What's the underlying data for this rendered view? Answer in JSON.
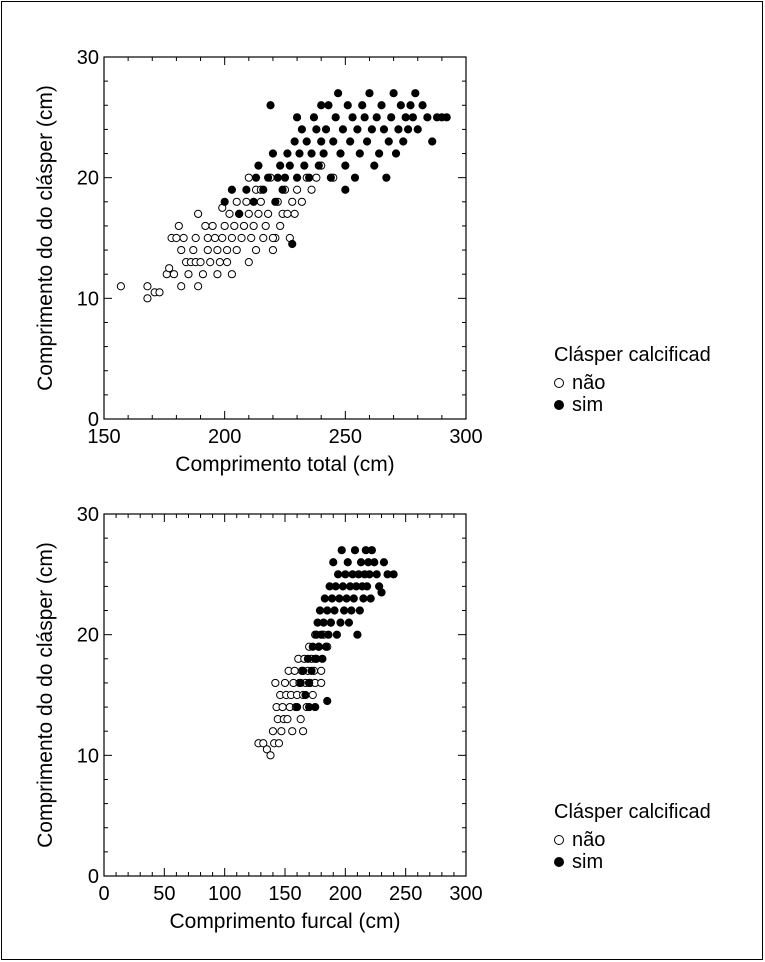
{
  "chart_data": [
    {
      "type": "scatter",
      "xlabel": "Comprimento total (cm)",
      "ylabel": "Comprimento do do clásper (cm)",
      "xlim": [
        150,
        300
      ],
      "ylim": [
        0,
        30
      ],
      "xticks": [
        150,
        200,
        250,
        300
      ],
      "yticks": [
        0,
        10,
        20,
        30
      ],
      "grid": false,
      "series": [
        {
          "name": "não",
          "marker": "open-circle",
          "points": [
            [
              157,
              11
            ],
            [
              168,
              10
            ],
            [
              168,
              11
            ],
            [
              171,
              10.5
            ],
            [
              173,
              10.5
            ],
            [
              176,
              12
            ],
            [
              177,
              12.5
            ],
            [
              178,
              15
            ],
            [
              179,
              12
            ],
            [
              180,
              15
            ],
            [
              181,
              16
            ],
            [
              182,
              14
            ],
            [
              182,
              11
            ],
            [
              183,
              15
            ],
            [
              184,
              13
            ],
            [
              185,
              12
            ],
            [
              186,
              13
            ],
            [
              187,
              14
            ],
            [
              188,
              15
            ],
            [
              188,
              13
            ],
            [
              189,
              11
            ],
            [
              189,
              17
            ],
            [
              190,
              13
            ],
            [
              191,
              12
            ],
            [
              192,
              16
            ],
            [
              193,
              14
            ],
            [
              193,
              15
            ],
            [
              194,
              13
            ],
            [
              195,
              16
            ],
            [
              196,
              15
            ],
            [
              197,
              14
            ],
            [
              197,
              12
            ],
            [
              198,
              13
            ],
            [
              199,
              15
            ],
            [
              199,
              17.5
            ],
            [
              200,
              16
            ],
            [
              201,
              13
            ],
            [
              201,
              14
            ],
            [
              202,
              17
            ],
            [
              203,
              12
            ],
            [
              203,
              15
            ],
            [
              204,
              16
            ],
            [
              205,
              14
            ],
            [
              206,
              17
            ],
            [
              207,
              15
            ],
            [
              208,
              16
            ],
            [
              209,
              18
            ],
            [
              210,
              17
            ],
            [
              210,
              13
            ],
            [
              211,
              15
            ],
            [
              212,
              16
            ],
            [
              213,
              19
            ],
            [
              213,
              14
            ],
            [
              214,
              17
            ],
            [
              215,
              18
            ],
            [
              216,
              15
            ],
            [
              217,
              16
            ],
            [
              218,
              17
            ],
            [
              219,
              20
            ],
            [
              220,
              14
            ],
            [
              221,
              15
            ],
            [
              222,
              18
            ],
            [
              223,
              16
            ],
            [
              224,
              17
            ],
            [
              225,
              19
            ],
            [
              226,
              17
            ],
            [
              227,
              15
            ],
            [
              228,
              18
            ],
            [
              229,
              17
            ],
            [
              230,
              19
            ],
            [
              232,
              18
            ],
            [
              234,
              20
            ],
            [
              236,
              19
            ],
            [
              238,
              20
            ],
            [
              240,
              21
            ],
            [
              245,
              20
            ],
            [
              210,
              20
            ],
            [
              215,
              19
            ],
            [
              205,
              18
            ],
            [
              220,
              15
            ]
          ]
        },
        {
          "name": "sim",
          "marker": "filled-circle",
          "points": [
            [
              200,
              18
            ],
            [
              203,
              19
            ],
            [
              206,
              17
            ],
            [
              209,
              19
            ],
            [
              212,
              18
            ],
            [
              213,
              20
            ],
            [
              214,
              21
            ],
            [
              216,
              19
            ],
            [
              218,
              20
            ],
            [
              219,
              26
            ],
            [
              220,
              22
            ],
            [
              221,
              18
            ],
            [
              222,
              20
            ],
            [
              223,
              21
            ],
            [
              224,
              19
            ],
            [
              225,
              20
            ],
            [
              226,
              22
            ],
            [
              227,
              21
            ],
            [
              228,
              14.5
            ],
            [
              229,
              23
            ],
            [
              230,
              20
            ],
            [
              231,
              22
            ],
            [
              232,
              24
            ],
            [
              233,
              21
            ],
            [
              234,
              23
            ],
            [
              235,
              20
            ],
            [
              236,
              22
            ],
            [
              237,
              25
            ],
            [
              238,
              24
            ],
            [
              239,
              21
            ],
            [
              240,
              23
            ],
            [
              241,
              22
            ],
            [
              242,
              24
            ],
            [
              243,
              26
            ],
            [
              244,
              20
            ],
            [
              245,
              23
            ],
            [
              246,
              25
            ],
            [
              247,
              27
            ],
            [
              248,
              22
            ],
            [
              249,
              24
            ],
            [
              250,
              21
            ],
            [
              251,
              26
            ],
            [
              252,
              23
            ],
            [
              253,
              25
            ],
            [
              254,
              20
            ],
            [
              255,
              24
            ],
            [
              256,
              22
            ],
            [
              257,
              26
            ],
            [
              258,
              25
            ],
            [
              259,
              23
            ],
            [
              260,
              27
            ],
            [
              261,
              24
            ],
            [
              262,
              21
            ],
            [
              263,
              25
            ],
            [
              264,
              22
            ],
            [
              265,
              26
            ],
            [
              266,
              24
            ],
            [
              267,
              20
            ],
            [
              268,
              23
            ],
            [
              269,
              25
            ],
            [
              270,
              27
            ],
            [
              271,
              22
            ],
            [
              272,
              24
            ],
            [
              273,
              26
            ],
            [
              274,
              23
            ],
            [
              275,
              25
            ],
            [
              276,
              24
            ],
            [
              277,
              26
            ],
            [
              278,
              25
            ],
            [
              279,
              27
            ],
            [
              280,
              24
            ],
            [
              282,
              26
            ],
            [
              284,
              25
            ],
            [
              286,
              23
            ],
            [
              288,
              25
            ],
            [
              290,
              25
            ],
            [
              292,
              25
            ],
            [
              230,
              25
            ],
            [
              240,
              26
            ],
            [
              250,
              19
            ]
          ]
        }
      ]
    },
    {
      "type": "scatter",
      "xlabel": "Comprimento furcal (cm)",
      "ylabel": "Comprimento do do clásper (cm)",
      "xlim": [
        0,
        300
      ],
      "ylim": [
        0,
        30
      ],
      "xticks": [
        0,
        50,
        100,
        150,
        200,
        250,
        300
      ],
      "yticks": [
        0,
        10,
        20,
        30
      ],
      "grid": false,
      "series": [
        {
          "name": "não",
          "marker": "open-circle",
          "points": [
            [
              128,
              11
            ],
            [
              132,
              11
            ],
            [
              135,
              10.5
            ],
            [
              138,
              10
            ],
            [
              140,
              12
            ],
            [
              141,
              11
            ],
            [
              142,
              16
            ],
            [
              143,
              14
            ],
            [
              144,
              13
            ],
            [
              145,
              11
            ],
            [
              146,
              15
            ],
            [
              147,
              12
            ],
            [
              148,
              14
            ],
            [
              149,
              13
            ],
            [
              150,
              16
            ],
            [
              151,
              15
            ],
            [
              152,
              13
            ],
            [
              153,
              17
            ],
            [
              154,
              14
            ],
            [
              155,
              15
            ],
            [
              156,
              12
            ],
            [
              157,
              16
            ],
            [
              158,
              17
            ],
            [
              159,
              14
            ],
            [
              160,
              15
            ],
            [
              161,
              18
            ],
            [
              162,
              16
            ],
            [
              163,
              13
            ],
            [
              164,
              17
            ],
            [
              165,
              15
            ],
            [
              166,
              18
            ],
            [
              167,
              16
            ],
            [
              168,
              14
            ],
            [
              169,
              17
            ],
            [
              170,
              19
            ],
            [
              171,
              16
            ],
            [
              172,
              18
            ],
            [
              173,
              15
            ],
            [
              174,
              17
            ],
            [
              175,
              20
            ],
            [
              176,
              18
            ],
            [
              178,
              19
            ],
            [
              180,
              17
            ],
            [
              182,
              20
            ],
            [
              185,
              19
            ],
            [
              188,
              21
            ],
            [
              165,
              12
            ],
            [
              170,
              16
            ],
            [
              175,
              16
            ],
            [
              180,
              16
            ]
          ]
        },
        {
          "name": "sim",
          "marker": "filled-circle",
          "points": [
            [
              160,
              14
            ],
            [
              163,
              16
            ],
            [
              165,
              17
            ],
            [
              167,
              15
            ],
            [
              169,
              18
            ],
            [
              170,
              16
            ],
            [
              172,
              17
            ],
            [
              173,
              19
            ],
            [
              175,
              18
            ],
            [
              176,
              20
            ],
            [
              177,
              21
            ],
            [
              178,
              19
            ],
            [
              179,
              22
            ],
            [
              180,
              20
            ],
            [
              181,
              18
            ],
            [
              182,
              21
            ],
            [
              183,
              23
            ],
            [
              184,
              19
            ],
            [
              185,
              22
            ],
            [
              186,
              20
            ],
            [
              187,
              24
            ],
            [
              188,
              21
            ],
            [
              189,
              23
            ],
            [
              190,
              26
            ],
            [
              191,
              22
            ],
            [
              192,
              24
            ],
            [
              193,
              20
            ],
            [
              194,
              25
            ],
            [
              195,
              23
            ],
            [
              196,
              21
            ],
            [
              197,
              27
            ],
            [
              198,
              24
            ],
            [
              199,
              22
            ],
            [
              200,
              25
            ],
            [
              201,
              23
            ],
            [
              202,
              26
            ],
            [
              203,
              21
            ],
            [
              204,
              24
            ],
            [
              205,
              22
            ],
            [
              206,
              25
            ],
            [
              207,
              23
            ],
            [
              208,
              27
            ],
            [
              209,
              24
            ],
            [
              210,
              20
            ],
            [
              211,
              25
            ],
            [
              212,
              22
            ],
            [
              213,
              26
            ],
            [
              214,
              24
            ],
            [
              215,
              23
            ],
            [
              216,
              25
            ],
            [
              217,
              27
            ],
            [
              218,
              24
            ],
            [
              219,
              26
            ],
            [
              220,
              25
            ],
            [
              221,
              23
            ],
            [
              222,
              27
            ],
            [
              224,
              26
            ],
            [
              226,
              25
            ],
            [
              228,
              24
            ],
            [
              230,
              23.5
            ],
            [
              232,
              26
            ],
            [
              235,
              25
            ],
            [
              240,
              25
            ],
            [
              185,
              14.5
            ],
            [
              175,
              14
            ],
            [
              170,
              14
            ]
          ]
        }
      ]
    }
  ],
  "legends": [
    {
      "title": "Clásper calcificad",
      "items": [
        {
          "label": "não",
          "marker": "open-circle"
        },
        {
          "label": "sim",
          "marker": "filled-circle"
        }
      ]
    },
    {
      "title": "Clásper calcificad",
      "items": [
        {
          "label": "não",
          "marker": "open-circle"
        },
        {
          "label": "sim",
          "marker": "filled-circle"
        }
      ]
    }
  ]
}
